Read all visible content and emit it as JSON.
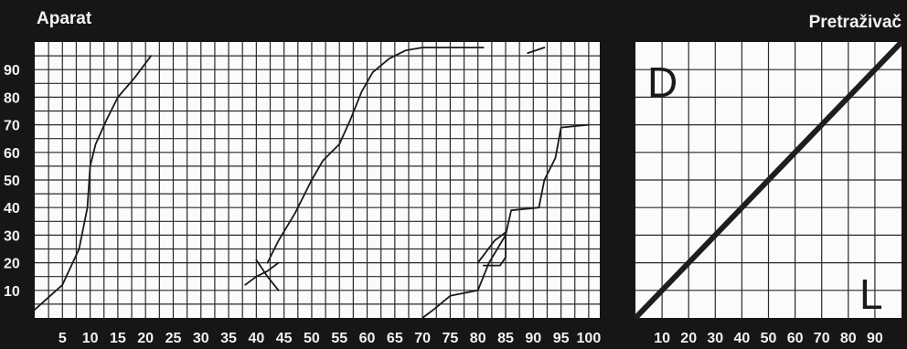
{
  "chart_data": [
    {
      "type": "line",
      "title": "Aparat",
      "x_ticks": [
        "5",
        "10",
        "15",
        "20",
        "25",
        "30",
        "35",
        "40",
        "45",
        "50",
        "55",
        "60",
        "65",
        "70",
        "75",
        "80",
        "85",
        "90",
        "95",
        "100"
      ],
      "y_ticks": [
        "10",
        "20",
        "30",
        "40",
        "50",
        "60",
        "70",
        "80",
        "90"
      ],
      "xlim": [
        0,
        102
      ],
      "ylim": [
        0,
        100
      ],
      "grid": true,
      "series": [
        {
          "points": [
            [
              0,
              3
            ],
            [
              5,
              12
            ],
            [
              8,
              25
            ],
            [
              9.5,
              40
            ],
            [
              10,
              55
            ],
            [
              11,
              63
            ],
            [
              13,
              72
            ],
            [
              15,
              80
            ],
            [
              18,
              87
            ],
            [
              21,
              95
            ]
          ]
        },
        {
          "points": [
            [
              38,
              12
            ],
            [
              40,
              15
            ],
            [
              42,
              17
            ],
            [
              44,
              20
            ]
          ]
        },
        {
          "points": [
            [
              40,
              21
            ],
            [
              42,
              15
            ],
            [
              44,
              10
            ]
          ]
        },
        {
          "points": [
            [
              42,
              20
            ],
            [
              44,
              28
            ],
            [
              47,
              38
            ],
            [
              50,
              50
            ],
            [
              52,
              57
            ],
            [
              55,
              63
            ],
            [
              57,
              72
            ],
            [
              59,
              82
            ],
            [
              61,
              89
            ],
            [
              64,
              94
            ],
            [
              67,
              97
            ],
            [
              70,
              98
            ],
            [
              75,
              98
            ],
            [
              81,
              98
            ]
          ]
        },
        {
          "points": [
            [
              89,
              96
            ],
            [
              92,
              98
            ]
          ]
        },
        {
          "points": [
            [
              70,
              0
            ],
            [
              72,
              3
            ],
            [
              75,
              8
            ],
            [
              80,
              10
            ],
            [
              82,
              20
            ],
            [
              85,
              30
            ],
            [
              86,
              39
            ],
            [
              91,
              40
            ],
            [
              92,
              50
            ],
            [
              94,
              58
            ],
            [
              95,
              69
            ],
            [
              100,
              70
            ]
          ]
        },
        {
          "points": [
            [
              80,
              20
            ],
            [
              83,
              28
            ],
            [
              85,
              31
            ],
            [
              85,
              22
            ],
            [
              84,
              19
            ],
            [
              81,
              19
            ]
          ]
        }
      ]
    },
    {
      "type": "line",
      "title": "Pretraživač",
      "x_ticks": [
        "10",
        "20",
        "30",
        "40",
        "50",
        "60",
        "70",
        "80",
        "90"
      ],
      "xlim": [
        0,
        100
      ],
      "ylim": [
        0,
        100
      ],
      "grid": true,
      "annotations": [
        "D",
        "L"
      ],
      "series": [
        {
          "points": [
            [
              0,
              0
            ],
            [
              100,
              100
            ]
          ]
        }
      ]
    }
  ]
}
